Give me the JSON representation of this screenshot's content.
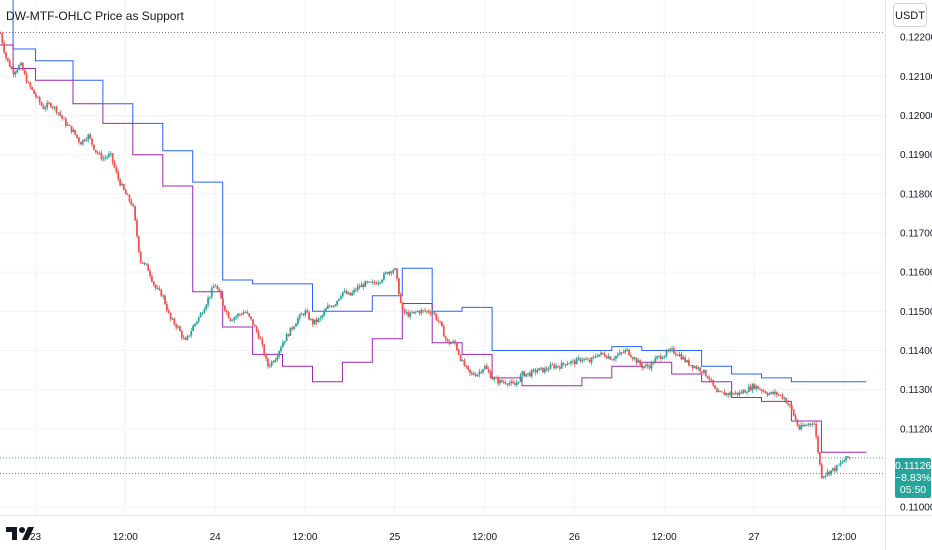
{
  "indicator_title": "DW-MTF-OHLC Price as Support",
  "currency_label": "USDT",
  "last_price": {
    "price": "0.11126",
    "change": "−8.83%",
    "countdown": "05:50"
  },
  "colors": {
    "background": "#ffffff",
    "up_candle": "#26a69a",
    "down_candle": "#ef5350",
    "upper_line": "#2962ff",
    "lower_line": "#9c27b0",
    "price_box": "#26a69a",
    "grid": "#f0f3fa"
  },
  "chart_data": {
    "type": "candlestick",
    "title": "DW-MTF-OHLC Price as Support",
    "ylim": [
      0.1098,
      0.12295
    ],
    "y_ticks": [
      "0.12200",
      "0.12100",
      "0.12000",
      "0.11900",
      "0.11800",
      "0.11700",
      "0.11600",
      "0.11500",
      "0.11400",
      "0.11300",
      "0.11200",
      "0.11000"
    ],
    "y_tick_values": [
      0.122,
      0.121,
      0.12,
      0.119,
      0.118,
      0.117,
      0.116,
      0.115,
      0.114,
      0.113,
      0.112,
      0.11
    ],
    "x_ticks": [
      "23",
      "12:00",
      "24",
      "12:00",
      "25",
      "12:00",
      "26",
      "12:00",
      "27",
      "12:00"
    ],
    "x_tick_times": [
      24,
      36,
      48,
      60,
      72,
      84,
      96,
      108,
      120,
      132
    ],
    "time_unit": "hours since 22 00:00",
    "time_range": [
      19.25,
      137.5
    ],
    "current_price": 0.11126,
    "reference_level": 0.12212,
    "lower_reference_level": 0.11086,
    "price_path": {
      "times": [
        19.3,
        20.0,
        21.0,
        22.0,
        23.0,
        24.0,
        25.0,
        26.0,
        27.0,
        28.0,
        29.0,
        30.0,
        31.0,
        32.0,
        33.0,
        34.0,
        35.0,
        36.0,
        37.0,
        38.0,
        39.0,
        40.0,
        41.0,
        42.0,
        43.0,
        44.0,
        45.0,
        46.0,
        47.0,
        48.0,
        49.0,
        50.0,
        51.0,
        52.0,
        53.0,
        54.0,
        55.0,
        56.0,
        57.0,
        58.0,
        59.0,
        60.0,
        61.0,
        62.0,
        63.0,
        64.0,
        65.0,
        66.0,
        67.0,
        68.0,
        69.0,
        70.0,
        71.0,
        72.0,
        73.0,
        74.0,
        75.0,
        76.0,
        77.0,
        78.0,
        79.0,
        80.0,
        81.0,
        82.0,
        83.0,
        84.0,
        85.0,
        86.0,
        87.0,
        88.0,
        89.0,
        90.0,
        91.0,
        92.0,
        93.0,
        94.0,
        95.0,
        96.0,
        97.0,
        98.0,
        99.0,
        100.0,
        101.0,
        102.0,
        103.0,
        104.0,
        105.0,
        106.0,
        107.0,
        108.0,
        109.0,
        110.0,
        111.0,
        112.0,
        113.0,
        114.0,
        115.0,
        116.0,
        117.0,
        118.0,
        119.0,
        120.0,
        121.0,
        122.0,
        123.0,
        124.0,
        125.0,
        126.0,
        127.0,
        128.0,
        129.0,
        130.0,
        131.0,
        132.0,
        133.0
      ],
      "closes": [
        0.1221,
        0.1215,
        0.1211,
        0.1213,
        0.1208,
        0.1205,
        0.1202,
        0.1203,
        0.1201,
        0.1198,
        0.1196,
        0.1193,
        0.1195,
        0.1191,
        0.1189,
        0.119,
        0.1184,
        0.118,
        0.1177,
        0.1163,
        0.1161,
        0.1156,
        0.1154,
        0.1148,
        0.1146,
        0.1142,
        0.1146,
        0.1149,
        0.1153,
        0.1157,
        0.1152,
        0.1148,
        0.1149,
        0.115,
        0.1147,
        0.1143,
        0.1136,
        0.1138,
        0.1142,
        0.1145,
        0.1148,
        0.115,
        0.1147,
        0.1148,
        0.1151,
        0.1152,
        0.1155,
        0.1154,
        0.1156,
        0.1157,
        0.1157,
        0.1158,
        0.116,
        0.1161,
        0.115,
        0.1149,
        0.115,
        0.115,
        0.115,
        0.1147,
        0.1142,
        0.1142,
        0.1137,
        0.1134,
        0.1134,
        0.1136,
        0.1133,
        0.1132,
        0.1132,
        0.1131,
        0.1134,
        0.1134,
        0.1135,
        0.1135,
        0.1136,
        0.1136,
        0.1137,
        0.1137,
        0.1138,
        0.1137,
        0.1139,
        0.1139,
        0.1138,
        0.1139,
        0.114,
        0.1138,
        0.1136,
        0.1136,
        0.1138,
        0.1139,
        0.114,
        0.1139,
        0.1137,
        0.1136,
        0.1135,
        0.1133,
        0.1129,
        0.1129,
        0.1129,
        0.1129,
        0.113,
        0.1131,
        0.113,
        0.1129,
        0.1129,
        0.1128,
        0.1125,
        0.112,
        0.1121,
        0.1122,
        0.1108,
        0.1109,
        0.111,
        0.1112,
        0.1113
      ]
    },
    "series": [
      {
        "name": "",
        "color": "#2962ff",
        "x": [
          19.25,
          21.0,
          21.0,
          24.0,
          24.0,
          29.0,
          29.0,
          33.0,
          33.0,
          37.0,
          37.0,
          41.0,
          41.0,
          45.0,
          45.0,
          49.0,
          49.0,
          53.0,
          53.0,
          57.0,
          57.0,
          61.0,
          61.0,
          65.0,
          65.0,
          69.0,
          69.0,
          73.0,
          73.0,
          77.0,
          77.0,
          81.0,
          81.0,
          85.0,
          85.0,
          89.0,
          89.0,
          93.0,
          93.0,
          97.0,
          97.0,
          101.0,
          101.0,
          105.0,
          105.0,
          109.0,
          109.0,
          113.0,
          113.0,
          117.0,
          117.0,
          121.0,
          121.0,
          125.0,
          125.0,
          129.0,
          129.0,
          133.0,
          133.0,
          135.0
        ],
        "y": [
          0.123,
          0.123,
          0.1217,
          0.1217,
          0.1214,
          0.1214,
          0.1209,
          0.1209,
          0.1203,
          0.1203,
          0.1198,
          0.1198,
          0.1191,
          0.1191,
          0.1183,
          0.1183,
          0.1158,
          0.1158,
          0.1157,
          0.1157,
          0.1157,
          0.1157,
          0.115,
          0.115,
          0.115,
          0.115,
          0.1154,
          0.1154,
          0.1161,
          0.1161,
          0.115,
          0.115,
          0.1151,
          0.1151,
          0.114,
          0.114,
          0.114,
          0.114,
          0.114,
          0.114,
          0.114,
          0.114,
          0.1141,
          0.1141,
          0.114,
          0.114,
          0.114,
          0.114,
          0.1136,
          0.1136,
          0.1134,
          0.1134,
          0.1133,
          0.1133,
          0.1132,
          0.1132,
          0.1132,
          0.1132,
          0.1132,
          0.1132
        ]
      },
      {
        "name": "",
        "color": "#9c27b0",
        "x": [
          19.25,
          21.0,
          21.0,
          24.0,
          24.0,
          29.0,
          29.0,
          33.0,
          33.0,
          37.0,
          37.0,
          41.0,
          41.0,
          45.0,
          45.0,
          49.0,
          49.0,
          53.0,
          53.0,
          57.0,
          57.0,
          61.0,
          61.0,
          65.0,
          65.0,
          69.0,
          69.0,
          73.0,
          73.0,
          77.0,
          77.0,
          81.0,
          81.0,
          85.0,
          85.0,
          89.0,
          89.0,
          93.0,
          93.0,
          97.0,
          97.0,
          101.0,
          101.0,
          105.0,
          105.0,
          109.0,
          109.0,
          113.0,
          113.0,
          117.0,
          117.0,
          121.0,
          121.0,
          125.0,
          125.0,
          129.0,
          129.0,
          133.0,
          133.0,
          135.0
        ],
        "y": [
          0.1218,
          0.1218,
          0.1212,
          0.1212,
          0.1209,
          0.1209,
          0.1203,
          0.1203,
          0.1198,
          0.1198,
          0.119,
          0.119,
          0.1182,
          0.1182,
          0.1155,
          0.1155,
          0.1146,
          0.1146,
          0.1139,
          0.1139,
          0.1136,
          0.1136,
          0.1132,
          0.1132,
          0.1137,
          0.1137,
          0.1143,
          0.1143,
          0.1152,
          0.1152,
          0.1142,
          0.1142,
          0.1139,
          0.1139,
          0.1133,
          0.1133,
          0.1131,
          0.1131,
          0.1131,
          0.1131,
          0.1133,
          0.1133,
          0.1136,
          0.1136,
          0.1137,
          0.1137,
          0.1134,
          0.1134,
          0.1132,
          0.1132,
          0.1128,
          0.1128,
          0.1127,
          0.1127,
          0.1122,
          0.1122,
          0.1114,
          0.1114,
          0.1114,
          0.1114
        ]
      }
    ]
  }
}
